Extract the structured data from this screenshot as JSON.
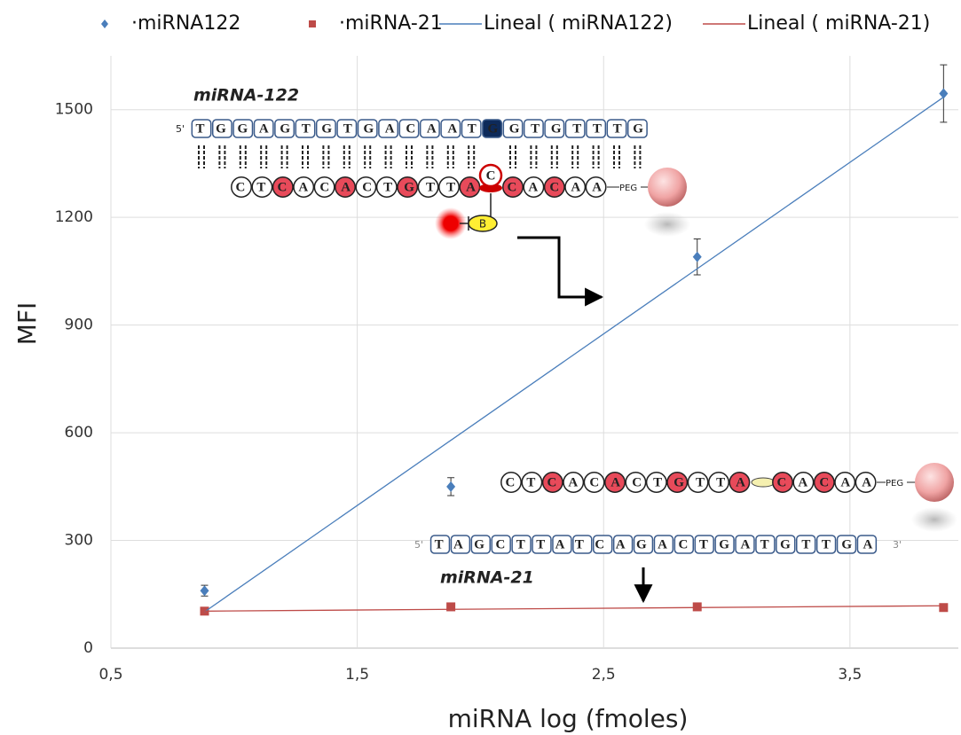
{
  "chart_data": {
    "type": "scatter",
    "x_label": "miRNA log (fmoles)",
    "y_label": "MFI",
    "x": [
      0.88,
      1.88,
      2.88,
      3.88
    ],
    "series": [
      {
        "name": "·miRNA122",
        "color": "#4a7ebb",
        "marker": "diamond",
        "values": [
          160,
          450,
          1090,
          1545
        ],
        "errors": [
          15,
          25,
          50,
          80
        ]
      },
      {
        "name": "·miRNA-21",
        "color": "#be4b48",
        "marker": "square",
        "values": [
          103,
          115,
          115,
          113
        ]
      },
      {
        "name": "Lineal (   miRNA122)",
        "color": "#4a7ebb",
        "marker": "line",
        "x": [
          0.88,
          3.88
        ],
        "values": [
          101,
          1535
        ]
      },
      {
        "name": "Lineal (   miRNA-21)",
        "color": "#be4b48",
        "marker": "line",
        "x": [
          0.88,
          3.88
        ],
        "values": [
          103,
          118
        ]
      }
    ],
    "xlim": [
      0.5,
      3.94
    ],
    "ylim": [
      0,
      1650
    ],
    "xticks": [
      {
        "value": 0.5,
        "label": "0,5"
      },
      {
        "value": 1.5,
        "label": "1,5"
      },
      {
        "value": 2.5,
        "label": "2,5"
      },
      {
        "value": 3.5,
        "label": "3,5"
      }
    ],
    "yticks": [
      0,
      300,
      600,
      900,
      1200,
      1500
    ],
    "grid": true,
    "legend": "top",
    "annotations": {
      "mir122_label": "miRNA-122",
      "mir21_label": "miRNA-21",
      "seq122": "TGGAGTGTGACAATGGTGTTTG",
      "probe_a": "CTCACACTGTTA",
      "probe_b": "CACAA",
      "probe_c": "C",
      "biotin": "B",
      "peg": "PEG",
      "five": "5'",
      "three": "3'",
      "seq21": "TAGCTTATCAGACTGATGTTGA"
    }
  }
}
